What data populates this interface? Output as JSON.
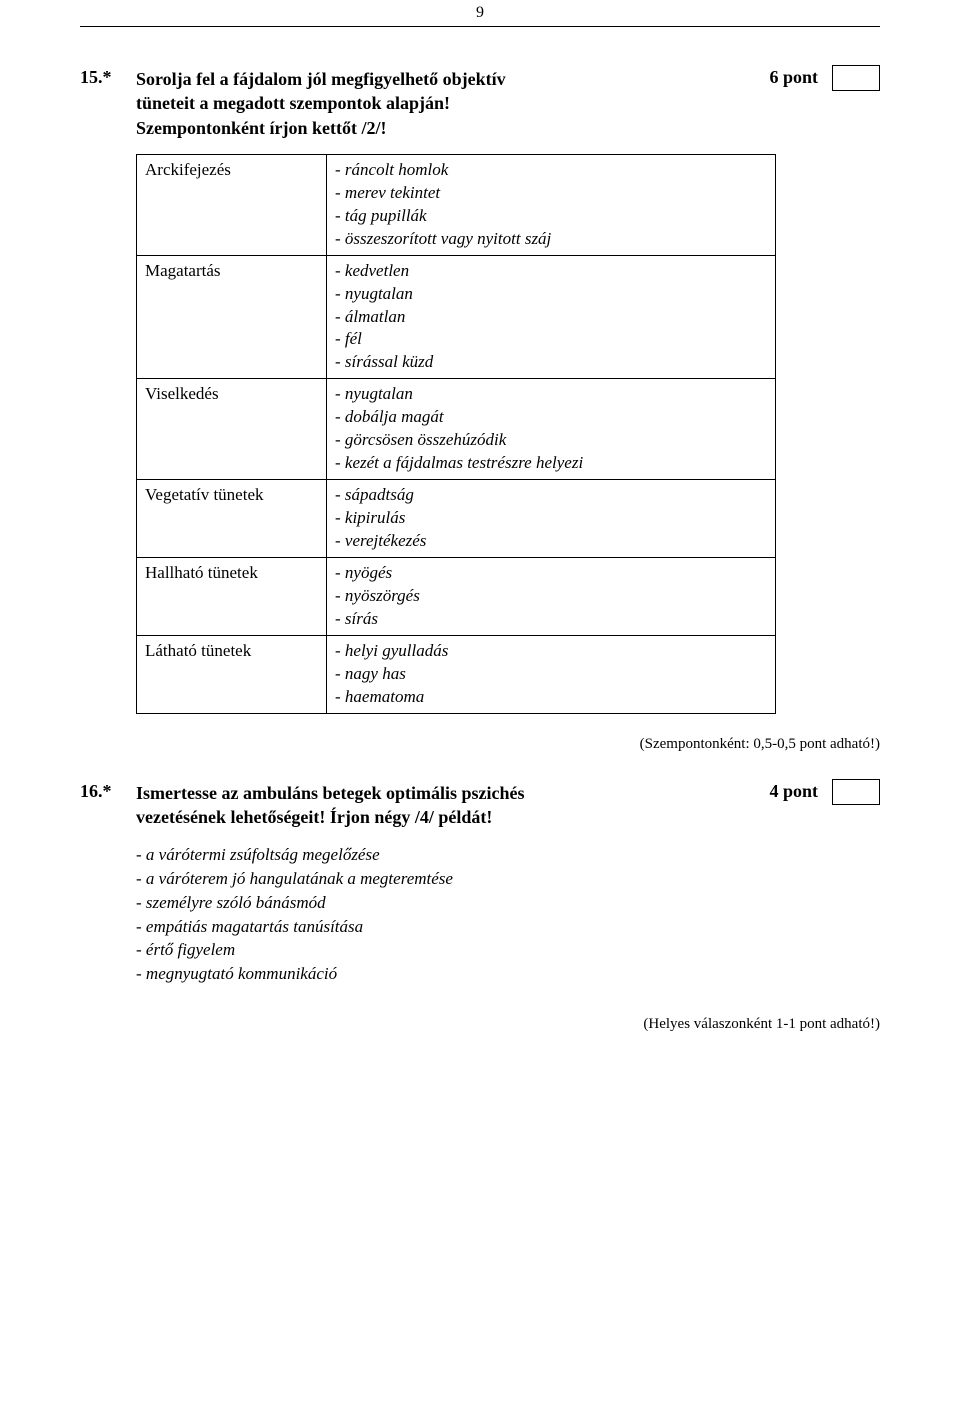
{
  "page": {
    "number": "9"
  },
  "q15": {
    "number": "15.*",
    "text_line1": "Sorolja fel a fájdalom jól megfigyelhető objektív",
    "text_line2": "tüneteit a megadott szempontok alapján!",
    "text_line3": "Szempontonként írjon kettőt /2/!",
    "points": "6 pont",
    "table": {
      "rows": [
        {
          "category": "Arckifejezés",
          "items": [
            "- ráncolt homlok",
            "- merev tekintet",
            "- tág pupillák",
            "- összeszorított vagy nyitott száj"
          ]
        },
        {
          "category": "Magatartás",
          "items": [
            "- kedvetlen",
            "- nyugtalan",
            "- álmatlan",
            "- fél",
            "- sírással küzd"
          ]
        },
        {
          "category": "Viselkedés",
          "items": [
            "- nyugtalan",
            "- dobálja magát",
            "- görcsösen összehúzódik",
            "- kezét a fájdalmas testrészre helyezi"
          ]
        },
        {
          "category": "Vegetatív tünetek",
          "items": [
            "- sápadtság",
            "- kipirulás",
            "- verejtékezés"
          ]
        },
        {
          "category": "Hallható tünetek",
          "items": [
            "- nyögés",
            "- nyöszörgés",
            "- sírás"
          ]
        },
        {
          "category": "Látható tünetek",
          "items": [
            "- helyi gyulladás",
            "- nagy has",
            "- haematoma"
          ]
        }
      ]
    },
    "scoring_note": "(Szempontonként: 0,5-0,5 pont adható!)"
  },
  "q16": {
    "number": "16.*",
    "text_line1": "Ismertesse az ambuláns betegek optimális pszichés",
    "text_line2": "vezetésének lehetőségeit! Írjon négy /4/ példát!",
    "points": "4 pont",
    "answers": [
      "- a várótermi zsúfoltság megelőzése",
      "- a váróterem jó hangulatának a megteremtése",
      "- személyre szóló bánásmód",
      "- empátiás magatartás tanúsítása",
      "- értő figyelem",
      "- megnyugtató kommunikáció"
    ],
    "scoring_note": "(Helyes válaszonként 1-1 pont adható!)"
  }
}
